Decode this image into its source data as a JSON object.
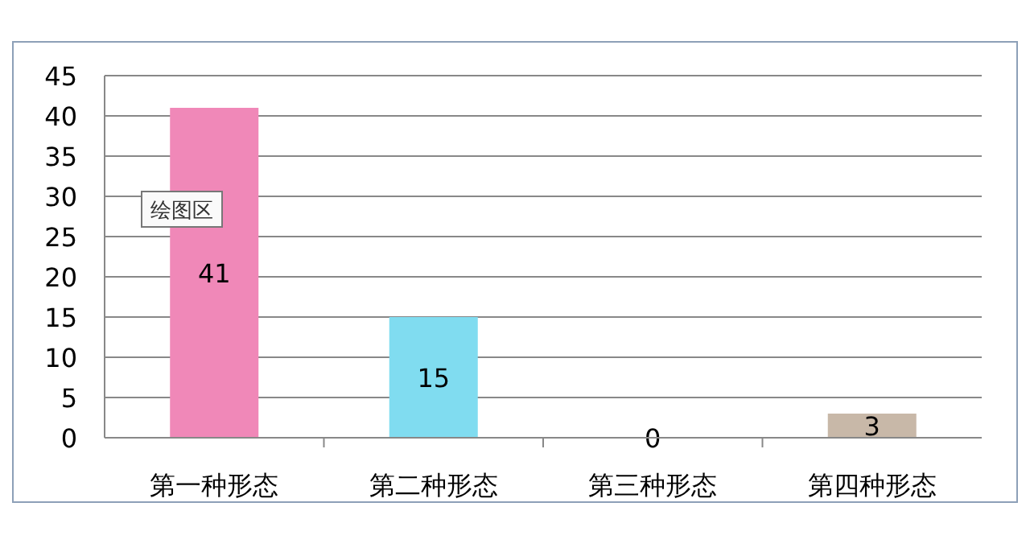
{
  "chart_data": {
    "type": "bar",
    "categories": [
      "第一种形态",
      "第二种形态",
      "第三种形态",
      "第四种形态"
    ],
    "values": [
      41,
      15,
      0,
      3
    ],
    "colors": [
      "#f088b8",
      "#80dcf0",
      null,
      "#c8b8a8"
    ],
    "ylim": [
      0,
      45
    ],
    "yticks": [
      0,
      5,
      10,
      15,
      20,
      25,
      30,
      35,
      40,
      45
    ],
    "grid": "y",
    "data_labels": true,
    "annotations": [
      "绘图区"
    ]
  }
}
